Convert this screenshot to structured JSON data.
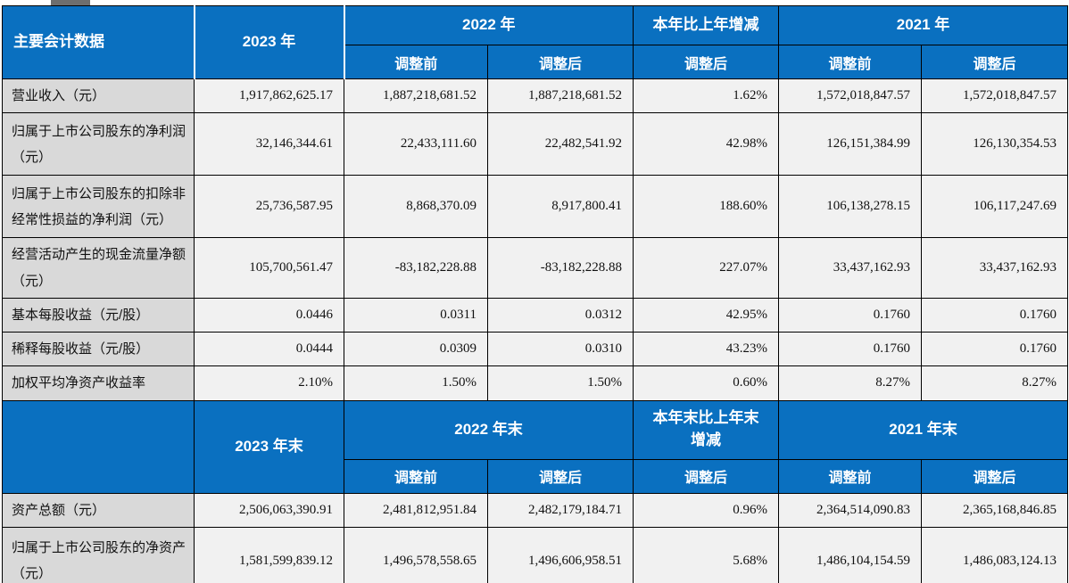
{
  "colors": {
    "header_blue": "#0a70c0",
    "header_text": "#ffffff",
    "label_bg": "#d9d9d9",
    "cell_bg": "#f1f1f1",
    "grid": "#000000"
  },
  "section1": {
    "corner": "主要会计数据",
    "year_current": "2023 年",
    "year_prev": "2022 年",
    "change": "本年比上年增减",
    "year_prev2": "2021 年",
    "subs": [
      "调整前",
      "调整后",
      "调整后",
      "调整前",
      "调整后"
    ],
    "rows": [
      {
        "label": "营业收入（元）",
        "values": [
          "1,917,862,625.17",
          "1,887,218,681.52",
          "1,887,218,681.52",
          "1.62%",
          "1,572,018,847.57",
          "1,572,018,847.57"
        ]
      },
      {
        "label": "归属于上市公司股东的净利润（元）",
        "values": [
          "32,146,344.61",
          "22,433,111.60",
          "22,482,541.92",
          "42.98%",
          "126,151,384.99",
          "126,130,354.53"
        ]
      },
      {
        "label": "归属于上市公司股东的扣除非经常性损益的净利润（元）",
        "values": [
          "25,736,587.95",
          "8,868,370.09",
          "8,917,800.41",
          "188.60%",
          "106,138,278.15",
          "106,117,247.69"
        ]
      },
      {
        "label": "经营活动产生的现金流量净额（元）",
        "values": [
          "105,700,561.47",
          "-83,182,228.88",
          "-83,182,228.88",
          "227.07%",
          "33,437,162.93",
          "33,437,162.93"
        ]
      },
      {
        "label": "基本每股收益（元/股）",
        "values": [
          "0.0446",
          "0.0311",
          "0.0312",
          "42.95%",
          "0.1760",
          "0.1760"
        ]
      },
      {
        "label": "稀释每股收益（元/股）",
        "values": [
          "0.0444",
          "0.0309",
          "0.0310",
          "43.23%",
          "0.1760",
          "0.1760"
        ]
      },
      {
        "label": "加权平均净资产收益率",
        "values": [
          "2.10%",
          "1.50%",
          "1.50%",
          "0.60%",
          "8.27%",
          "8.27%"
        ]
      }
    ]
  },
  "section2": {
    "corner": "",
    "year_current": "2023 年末",
    "year_prev": "2022 年末",
    "change": "本年末比上年末增减",
    "year_prev2": "2021 年末",
    "subs": [
      "调整前",
      "调整后",
      "调整后",
      "调整前",
      "调整后"
    ],
    "rows": [
      {
        "label": "资产总额（元）",
        "values": [
          "2,506,063,390.91",
          "2,481,812,951.84",
          "2,482,179,184.71",
          "0.96%",
          "2,364,514,090.83",
          "2,365,168,846.85"
        ]
      },
      {
        "label": "归属于上市公司股东的净资产（元）",
        "values": [
          "1,581,599,839.12",
          "1,496,578,558.65",
          "1,496,606,958.51",
          "5.68%",
          "1,486,104,154.59",
          "1,486,083,124.13"
        ]
      }
    ]
  }
}
